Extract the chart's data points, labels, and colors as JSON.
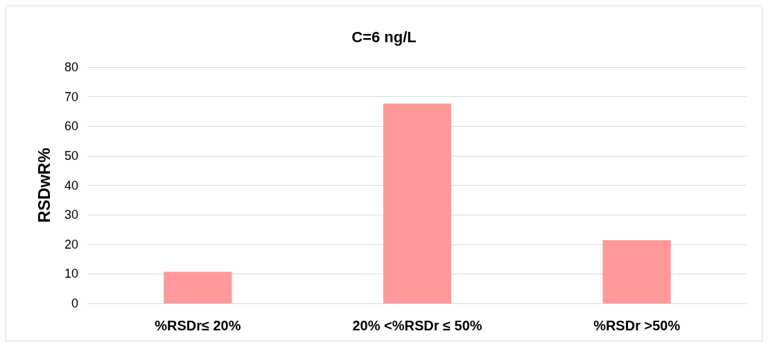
{
  "chart_data": {
    "type": "bar",
    "title": "C=6 ng/L",
    "ylabel": "RSDwR%",
    "categories": [
      "%RSDr≤ 20%",
      "20% <%RSDr ≤ 50%",
      "%RSDr >50%"
    ],
    "values": [
      10.7,
      67.7,
      21.4
    ],
    "color": "#ff9999",
    "ylim": [
      0,
      80
    ],
    "yticks": [
      0,
      10,
      20,
      30,
      40,
      50,
      60,
      70,
      80
    ],
    "grid": "y"
  }
}
